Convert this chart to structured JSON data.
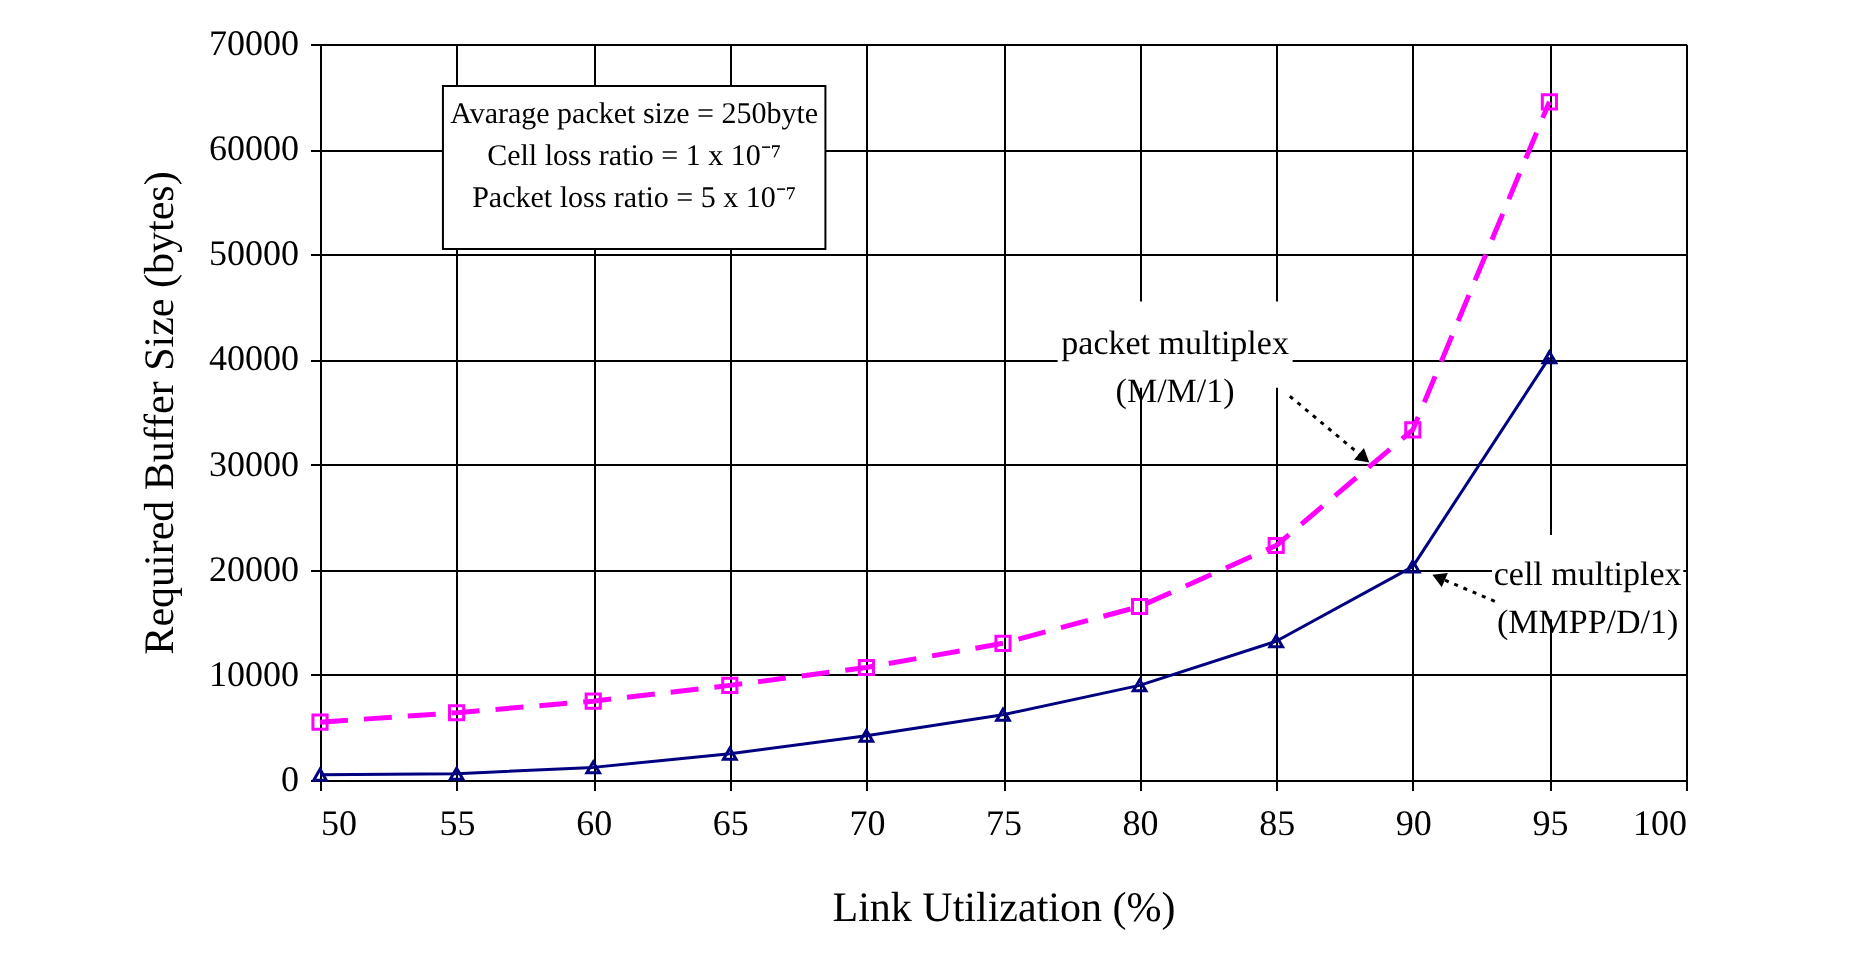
{
  "chart_data": {
    "type": "line",
    "xlabel": "Link Utilization (%)",
    "ylabel": "Required Buffer Size (bytes)",
    "x": [
      50,
      55,
      60,
      65,
      70,
      75,
      80,
      85,
      90,
      95
    ],
    "series": [
      {
        "color": "#ff00ff",
        "values": [
          5500,
          6400,
          7500,
          9000,
          10700,
          13000,
          16500,
          22300,
          33300,
          64500
        ],
        "marker": "square",
        "line_style": "dashed"
      },
      {
        "color": "#000080",
        "values": [
          500,
          600,
          1200,
          2500,
          4200,
          6200,
          9000,
          13200,
          20300,
          40200
        ],
        "marker": "triangle",
        "line_style": "solid"
      }
    ],
    "xlim": [
      50,
      100
    ],
    "xticks": [
      50,
      55,
      60,
      65,
      70,
      75,
      80,
      85,
      90,
      95,
      100
    ],
    "ylim": [
      0,
      70000
    ],
    "yticks": [
      0,
      10000,
      20000,
      30000,
      40000,
      50000,
      60000,
      70000
    ],
    "grid": true,
    "annotations": [
      "Avarage packet size = 250byte\nCell loss ratio = 1 x 10⁻⁷\nPacket loss ratio = 5 x 10⁻⁷",
      {
        "text": "packet multiplex\n(M/M/1)",
        "x": 88.5,
        "y": 30000
      },
      {
        "text": "cell multiplex\n(MMPP/D/1)",
        "x": 90,
        "y": 20300
      }
    ]
  }
}
